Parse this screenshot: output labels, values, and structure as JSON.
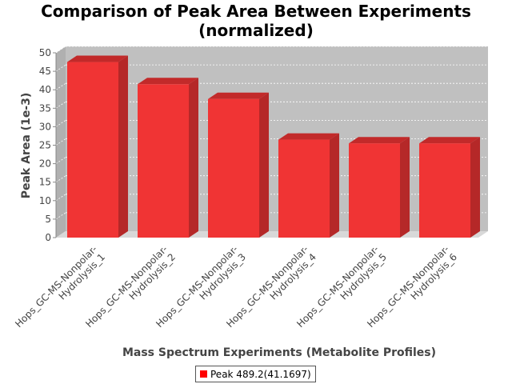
{
  "chart_data": {
    "type": "bar",
    "title_line1": "Comparison of Peak Area Between Experiments",
    "title_line2": "(normalized)",
    "xlabel": "Mass Spectrum Experiments (Metabolite Profiles)",
    "ylabel": "Peak Area (1e-3)",
    "ylim": [
      0,
      50
    ],
    "yticks": [
      "0",
      "5",
      "10",
      "15",
      "20",
      "25",
      "30",
      "35",
      "40",
      "45",
      "50"
    ],
    "grid": true,
    "legend_position": "bottom-center",
    "bar_color": "#ff0000",
    "categories": [
      {
        "line1": "Hops_GC-MS-Nonpolar-",
        "line2": "Hydrolysis_1"
      },
      {
        "line1": "Hops_GC-MS-Nonpolar-",
        "line2": "Hydrolysis_2"
      },
      {
        "line1": "Hops_GC-MS-Nonpolar-",
        "line2": "Hydrolysis_3"
      },
      {
        "line1": "Hops_GC-MS-Nonpolar-",
        "line2": "Hydrolysis_4"
      },
      {
        "line1": "Hops_GC-MS-Nonpolar-",
        "line2": "Hydrolysis_5"
      },
      {
        "line1": "Hops_GC-MS-Nonpolar-",
        "line2": "Hydrolysis_6"
      }
    ],
    "series": [
      {
        "name": "Peak 489.2(41.1697)",
        "values": [
          47.5,
          41.5,
          37.5,
          26.5,
          25.5,
          25.5
        ]
      }
    ]
  }
}
